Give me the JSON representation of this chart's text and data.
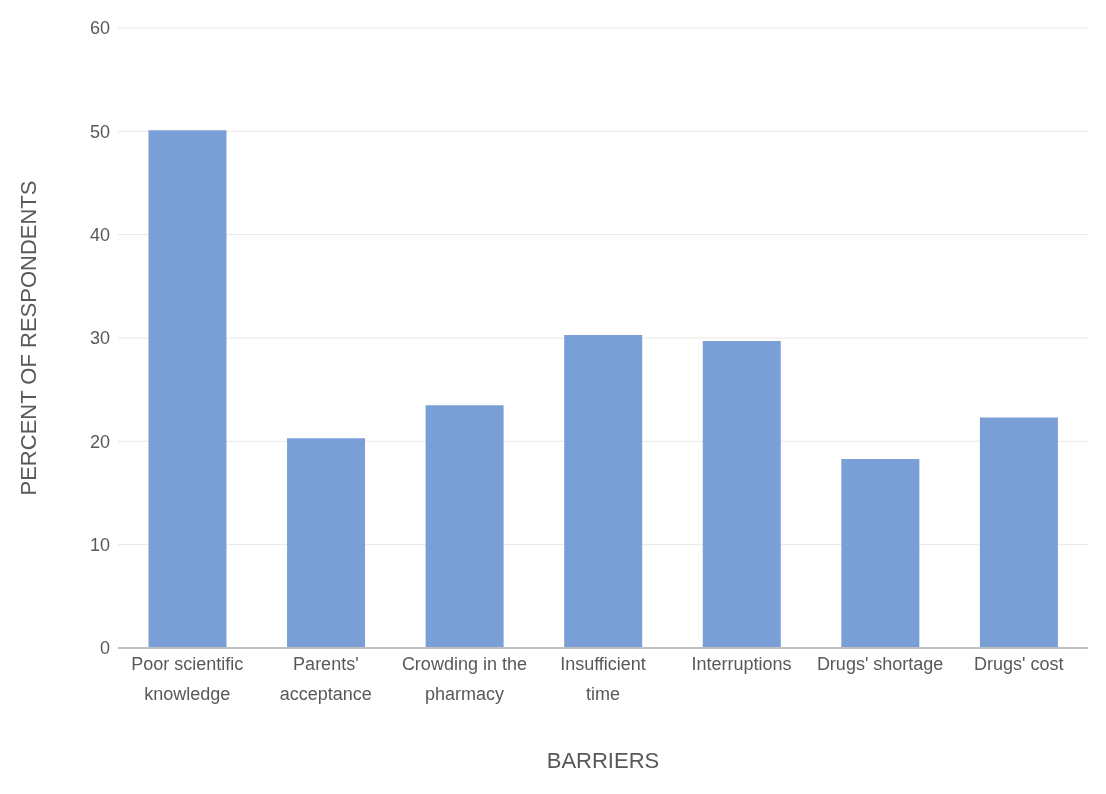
{
  "chart_data": {
    "type": "bar",
    "xlabel": "BARRIERS",
    "ylabel": "PERCENT OF RESPONDENTS",
    "categories": [
      "Poor scientific knowledge",
      "Parents' acceptance",
      "Crowding in the pharmacy",
      "Insufficient time",
      "Interruptions",
      "Drugs' shortage",
      "Drugs' cost"
    ],
    "values": [
      50.1,
      20.3,
      23.5,
      30.3,
      29.7,
      18.3,
      22.3
    ],
    "color": "#7a9fd6",
    "ylim": [
      0,
      60
    ],
    "yticks": [
      0,
      10,
      20,
      30,
      40,
      50,
      60
    ],
    "grid": "y"
  }
}
